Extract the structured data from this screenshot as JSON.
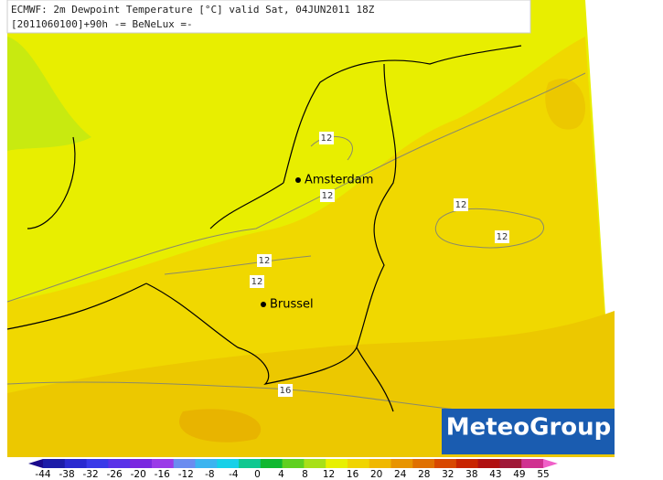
{
  "header": {
    "title": "ECMWF: 2m Dewpoint Temperature [°C] valid Sat, 04JUN2011 18Z",
    "subtitle": "[2011060100]+90h -= BeNeLux =-"
  },
  "cities": [
    {
      "label": "Amsterdam"
    },
    {
      "label": "Brussel"
    }
  ],
  "contour_labels": [
    "12",
    "12",
    "12",
    "12",
    "12",
    "12",
    "16"
  ],
  "legend": {
    "ticks": [
      -44,
      -38,
      -32,
      -26,
      -20,
      -16,
      -12,
      -8,
      -4,
      0,
      4,
      8,
      12,
      16,
      20,
      24,
      28,
      32,
      38,
      43,
      49,
      55
    ],
    "colors": [
      "#1a0a8c",
      "#1c1ca8",
      "#2a2ad0",
      "#3a3ae8",
      "#5a32e8",
      "#7a28e0",
      "#9a3ae8",
      "#6a8cf0",
      "#3cb4f0",
      "#18d0e8",
      "#10c890",
      "#10b830",
      "#60d020",
      "#a8e018",
      "#e8f000",
      "#f0d400",
      "#f0b800",
      "#e89400",
      "#e07000",
      "#d84800",
      "#c82400",
      "#b01010",
      "#a01838",
      "#d03090",
      "#f060c8"
    ]
  },
  "logo": "MeteoGroup"
}
